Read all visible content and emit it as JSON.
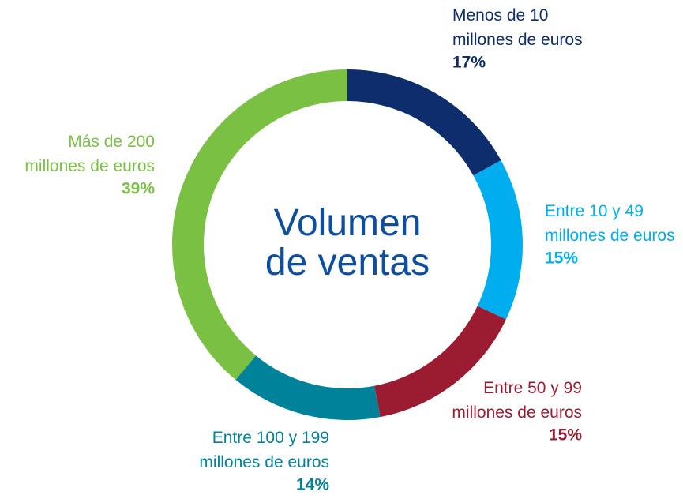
{
  "chart_data": {
    "type": "pie",
    "title": "Volumen\nde ventas",
    "categories": [
      "Menos de 10\nmillones de euros",
      "Entre 10 y 49\nmillones de euros",
      "Entre 50 y 99\nmillones de euros",
      "Entre 100 y 199\nmillones de euros",
      "Más de 200\nmillones de euros"
    ],
    "values": [
      17,
      15,
      15,
      14,
      39
    ],
    "value_labels": [
      "17%",
      "15%",
      "15%",
      "14%",
      "39%"
    ],
    "colors": [
      "#0d2d6c",
      "#00aeef",
      "#9b1c31",
      "#00829b",
      "#7ac143"
    ]
  }
}
